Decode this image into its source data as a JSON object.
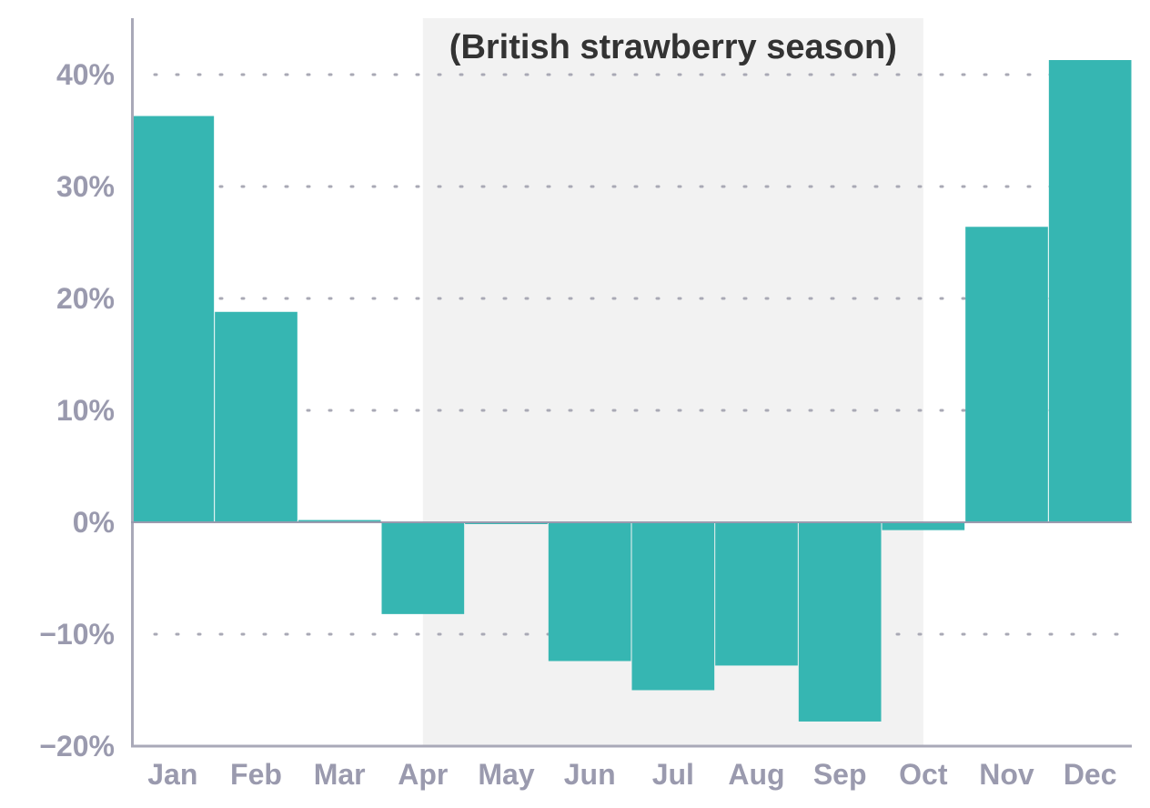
{
  "chart_data": {
    "type": "bar",
    "title": "",
    "xlabel": "",
    "ylabel": "",
    "categories": [
      "Jan",
      "Feb",
      "Mar",
      "Apr",
      "May",
      "Jun",
      "Jul",
      "Aug",
      "Sep",
      "Oct",
      "Nov",
      "Dec"
    ],
    "values": [
      36.3,
      18.8,
      0.2,
      -8.2,
      -0.1,
      -12.4,
      -15.0,
      -12.8,
      -17.8,
      -0.7,
      26.4,
      41.3
    ],
    "ylim": [
      -20,
      45
    ],
    "yticks": [
      -20,
      -10,
      0,
      10,
      20,
      30,
      40
    ],
    "ytick_labels": [
      "−20%",
      "−10%",
      "0%",
      "10%",
      "20%",
      "30%",
      "40%"
    ],
    "grid": true,
    "highlight_band": {
      "label": "(British strawberry season)",
      "from_category": "Apr",
      "to_category": "Oct"
    },
    "colors": {
      "bar": "#36b6b2",
      "band": "#f2f2f2",
      "axis": "#a9a9b8",
      "tick_text": "#9a9aae",
      "season_text": "#333333"
    }
  }
}
